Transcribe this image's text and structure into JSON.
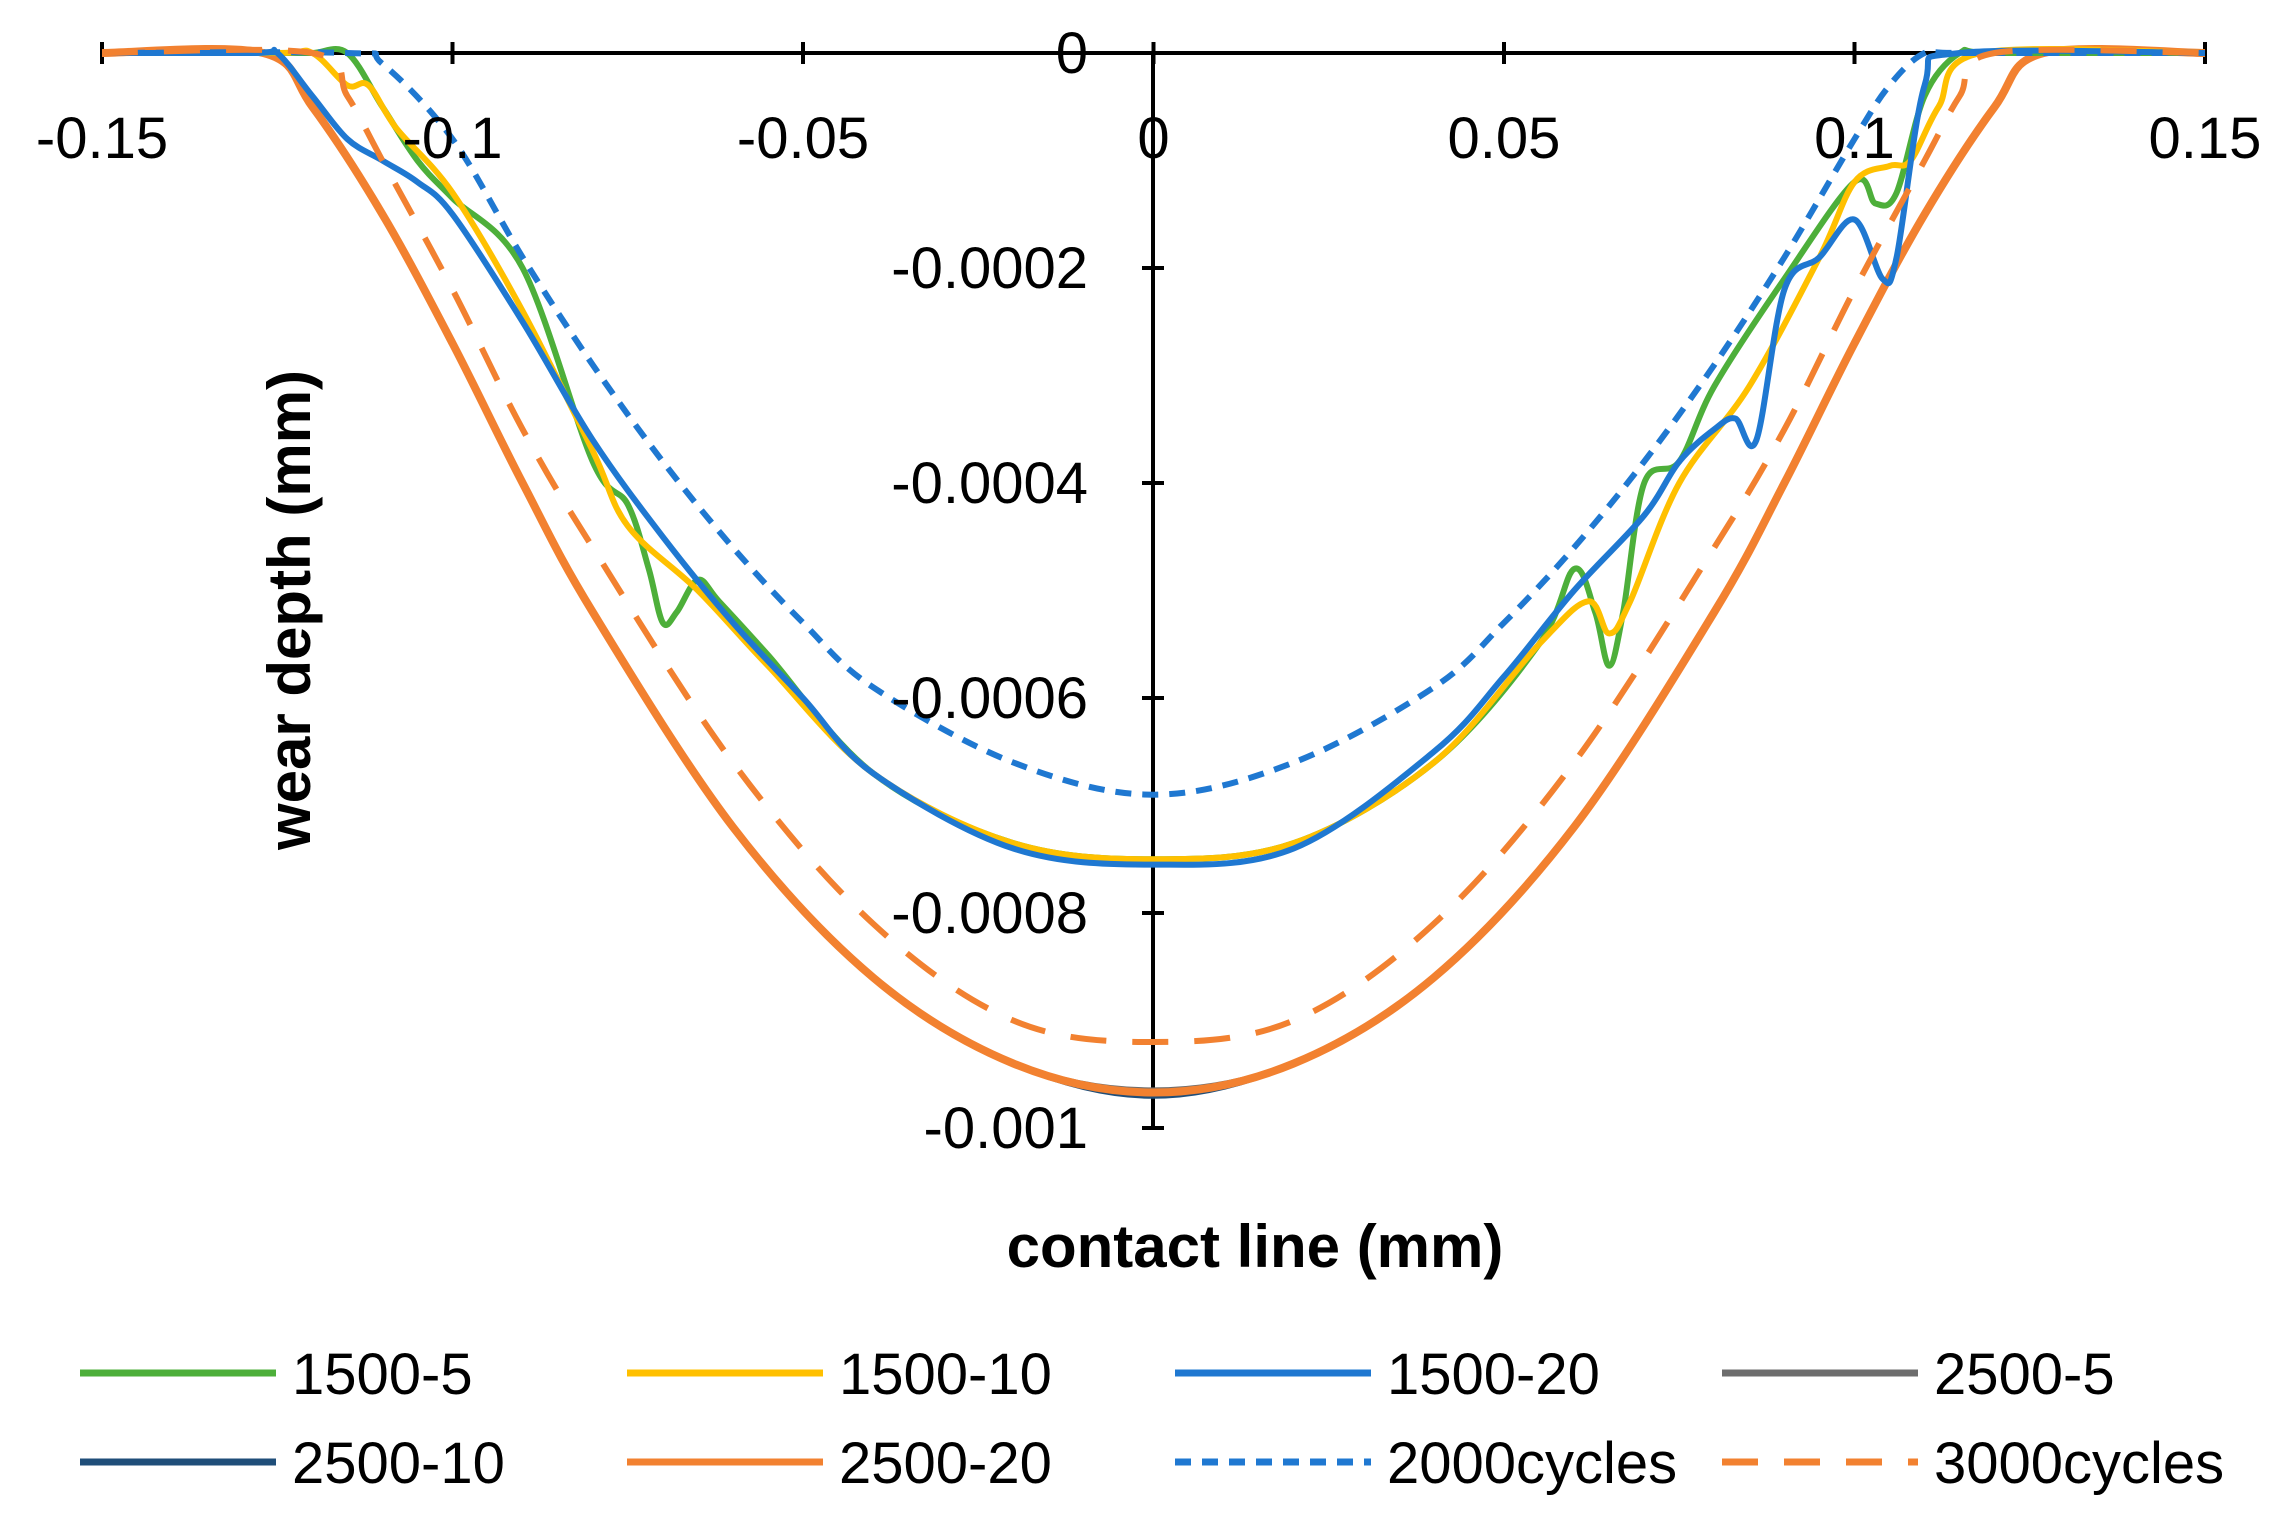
{
  "chart_data": {
    "type": "line",
    "title": "",
    "xlabel": "contact line (mm)",
    "ylabel": "wear depth (mm)",
    "xlim": [
      -0.15,
      0.15
    ],
    "ylim": [
      -0.001,
      0
    ],
    "xticks": [
      -0.15,
      -0.1,
      -0.05,
      0,
      0.05,
      0.1,
      0.15
    ],
    "xtick_labels": [
      "-0.15",
      "-0.1",
      "-0.05",
      "0",
      "0.05",
      "0.1",
      "0.15"
    ],
    "yticks": [
      0,
      -0.0002,
      -0.0004,
      -0.0006,
      -0.0008,
      -0.001
    ],
    "ytick_labels": [
      "0",
      "-0.0002",
      "-0.0004",
      "-0.0006",
      "-0.0008",
      "-0.001"
    ],
    "grid": false,
    "legend_position": "bottom",
    "series": [
      {
        "name": "1500-5",
        "color": "#4DAF3A",
        "dash": "solid",
        "x": [
          -0.15,
          -0.125,
          -0.12,
          -0.115,
          -0.11,
          -0.105,
          -0.1,
          -0.09,
          -0.08,
          -0.075,
          -0.072,
          -0.07,
          -0.068,
          -0.065,
          -0.062,
          -0.055,
          -0.04,
          -0.02,
          0,
          0.02,
          0.04,
          0.055,
          0.06,
          0.063,
          0.065,
          0.067,
          0.07,
          0.075,
          0.08,
          0.09,
          0.1,
          0.103,
          0.106,
          0.11,
          0.115,
          0.12,
          0.15
        ],
        "y": [
          0,
          0,
          0,
          0,
          -5e-05,
          -0.0001,
          -0.000135,
          -0.0002,
          -0.00038,
          -0.00042,
          -0.00048,
          -0.00053,
          -0.00052,
          -0.00049,
          -0.00051,
          -0.00056,
          -0.00067,
          -0.000735,
          -0.00075,
          -0.000735,
          -0.00066,
          -0.00055,
          -0.00048,
          -0.00052,
          -0.00057,
          -0.00052,
          -0.0004,
          -0.00038,
          -0.00031,
          -0.00021,
          -0.00012,
          -0.00014,
          -0.00013,
          -4e-05,
          0,
          0,
          0
        ]
      },
      {
        "name": "1500-10",
        "color": "#FFC000",
        "dash": "solid",
        "x": [
          -0.15,
          -0.125,
          -0.12,
          -0.115,
          -0.112,
          -0.108,
          -0.1,
          -0.09,
          -0.08,
          -0.075,
          -0.065,
          -0.055,
          -0.04,
          -0.02,
          0,
          0.02,
          0.04,
          0.055,
          0.062,
          0.065,
          0.068,
          0.075,
          0.085,
          0.095,
          0.1,
          0.105,
          0.108,
          0.112,
          0.118,
          0.15
        ],
        "y": [
          0,
          0,
          0,
          -3e-05,
          -3e-05,
          -7e-05,
          -0.00013,
          -0.00024,
          -0.00037,
          -0.00044,
          -0.0005,
          -0.00057,
          -0.00067,
          -0.000735,
          -0.00075,
          -0.000735,
          -0.00066,
          -0.00055,
          -0.00051,
          -0.00054,
          -0.00051,
          -0.0004,
          -0.00031,
          -0.00019,
          -0.00012,
          -0.000105,
          -0.0001,
          -5e-05,
          0,
          0
        ]
      },
      {
        "name": "1500-20",
        "color": "#1F78D1",
        "dash": "solid",
        "x": [
          -0.15,
          -0.128,
          -0.125,
          -0.12,
          -0.115,
          -0.11,
          -0.105,
          -0.1,
          -0.09,
          -0.08,
          -0.07,
          -0.06,
          -0.05,
          -0.04,
          -0.02,
          0,
          0.02,
          0.04,
          0.05,
          0.06,
          0.07,
          0.075,
          0.08,
          0.083,
          0.086,
          0.09,
          0.095,
          0.1,
          0.104,
          0.106,
          0.11,
          0.115,
          0.15
        ],
        "y": [
          0,
          0,
          0,
          -4e-05,
          -8e-05,
          -0.0001,
          -0.00012,
          -0.00015,
          -0.00025,
          -0.00036,
          -0.00045,
          -0.00053,
          -0.0006,
          -0.00067,
          -0.00074,
          -0.000755,
          -0.00074,
          -0.00065,
          -0.00058,
          -0.0005,
          -0.00043,
          -0.00038,
          -0.00035,
          -0.00034,
          -0.00036,
          -0.00022,
          -0.00019,
          -0.000155,
          -0.00021,
          -0.00019,
          -3e-05,
          0,
          0
        ]
      },
      {
        "name": "2500-5",
        "color": "#6D6D6D",
        "dash": "solid",
        "x": [
          -0.15,
          -0.127,
          -0.12,
          -0.11,
          -0.1,
          -0.09,
          -0.08,
          -0.06,
          -0.04,
          -0.02,
          0,
          0.02,
          0.04,
          0.06,
          0.08,
          0.09,
          0.1,
          0.11,
          0.12,
          0.127,
          0.15
        ],
        "y": [
          0,
          0,
          -5e-05,
          -0.00015,
          -0.00027,
          -0.0004,
          -0.00052,
          -0.00072,
          -0.00086,
          -0.00094,
          -0.000965,
          -0.00094,
          -0.00086,
          -0.00072,
          -0.00052,
          -0.0004,
          -0.00027,
          -0.00015,
          -5e-05,
          0,
          0
        ]
      },
      {
        "name": "2500-10",
        "color": "#1F4E79",
        "dash": "solid",
        "x": [
          -0.15,
          -0.127,
          -0.12,
          -0.11,
          -0.1,
          -0.09,
          -0.08,
          -0.06,
          -0.04,
          -0.02,
          0,
          0.02,
          0.04,
          0.06,
          0.08,
          0.09,
          0.1,
          0.11,
          0.12,
          0.127,
          0.15
        ],
        "y": [
          0,
          0,
          -5e-05,
          -0.00015,
          -0.00027,
          -0.0004,
          -0.00052,
          -0.00072,
          -0.00086,
          -0.00094,
          -0.00097,
          -0.00094,
          -0.00086,
          -0.00072,
          -0.00052,
          -0.0004,
          -0.00027,
          -0.00015,
          -5e-05,
          0,
          0
        ]
      },
      {
        "name": "2500-20",
        "color": "#F28130",
        "dash": "solid",
        "x": [
          -0.15,
          -0.127,
          -0.12,
          -0.11,
          -0.1,
          -0.09,
          -0.08,
          -0.06,
          -0.04,
          -0.02,
          0,
          0.02,
          0.04,
          0.06,
          0.08,
          0.09,
          0.1,
          0.11,
          0.12,
          0.127,
          0.15
        ],
        "y": [
          0,
          0,
          -5e-05,
          -0.00015,
          -0.00027,
          -0.0004,
          -0.00052,
          -0.00072,
          -0.00086,
          -0.00094,
          -0.000967,
          -0.00094,
          -0.00086,
          -0.00072,
          -0.00052,
          -0.0004,
          -0.00027,
          -0.00015,
          -5e-05,
          0,
          0
        ]
      },
      {
        "name": "2000cycles",
        "color": "#1F78D1",
        "dash": "short",
        "x": [
          -0.15,
          -0.115,
          -0.11,
          -0.1,
          -0.09,
          -0.08,
          -0.07,
          -0.06,
          -0.05,
          -0.04,
          -0.02,
          0,
          0.02,
          0.04,
          0.05,
          0.06,
          0.07,
          0.08,
          0.09,
          0.1,
          0.105,
          0.11,
          0.115,
          0.15
        ],
        "y": [
          0,
          0,
          -1e-05,
          -8e-05,
          -0.00019,
          -0.00029,
          -0.00038,
          -0.00046,
          -0.00053,
          -0.00059,
          -0.00066,
          -0.00069,
          -0.00066,
          -0.00059,
          -0.00053,
          -0.00046,
          -0.00038,
          -0.00029,
          -0.00019,
          -8e-05,
          -3e-05,
          0,
          0,
          0
        ]
      },
      {
        "name": "3000cycles",
        "color": "#F28130",
        "dash": "long",
        "x": [
          -0.15,
          -0.12,
          -0.115,
          -0.11,
          -0.1,
          -0.09,
          -0.08,
          -0.06,
          -0.04,
          -0.02,
          0,
          0.02,
          0.04,
          0.06,
          0.08,
          0.09,
          0.1,
          0.11,
          0.115,
          0.12,
          0.15
        ],
        "y": [
          0,
          0,
          -4e-05,
          -0.0001,
          -0.00022,
          -0.00035,
          -0.00046,
          -0.00066,
          -0.00081,
          -0.0009,
          -0.00092,
          -0.0009,
          -0.00081,
          -0.00066,
          -0.00046,
          -0.00035,
          -0.00022,
          -0.0001,
          -4e-05,
          0,
          0
        ]
      }
    ]
  }
}
